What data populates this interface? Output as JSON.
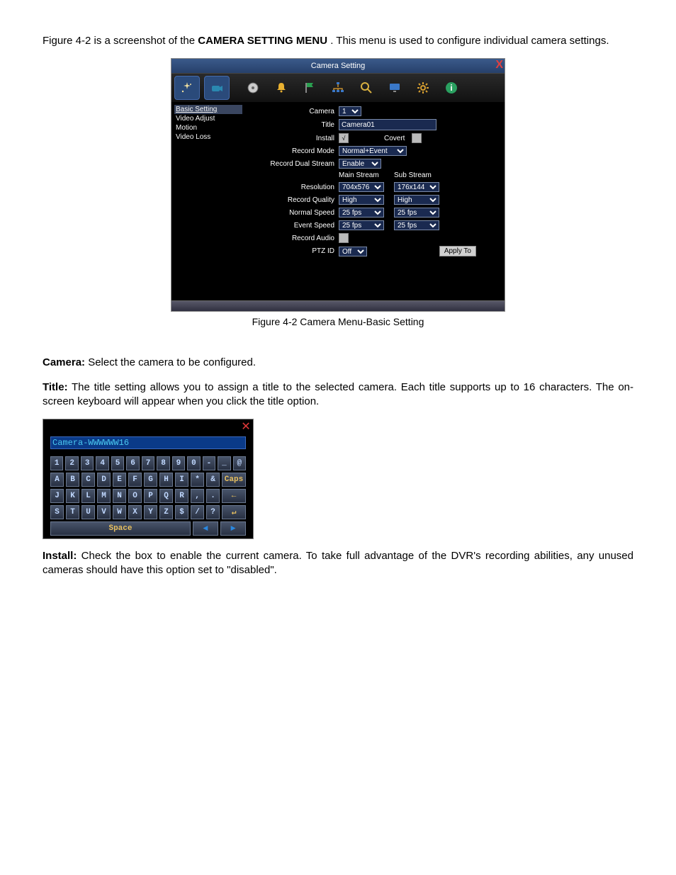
{
  "intro_prefix": "Figure 4-2 is a screenshot of the ",
  "intro_bold": "CAMERA SETTING MENU",
  "intro_suffix": ". This menu is used to configure individual camera settings.",
  "caption": "Figure 4-2 Camera Menu-Basic Setting",
  "dialog": {
    "title": "Camera Setting",
    "sidebar": [
      "Basic Setting",
      "Video Adjust",
      "Motion",
      "Video Loss"
    ],
    "labels": {
      "camera": "Camera",
      "title": "Title",
      "install": "Install",
      "covert": "Covert",
      "record_mode": "Record Mode",
      "record_dual_stream": "Record Dual Stream",
      "main_stream": "Main Stream",
      "sub_stream": "Sub Stream",
      "resolution": "Resolution",
      "record_quality": "Record Quality",
      "normal_speed": "Normal Speed",
      "event_speed": "Event Speed",
      "record_audio": "Record Audio",
      "ptz_id": "PTZ ID",
      "apply_to": "Apply To"
    },
    "values": {
      "camera": "1",
      "title": "Camera01",
      "install_checked": "√",
      "covert_checked": "",
      "record_mode": "Normal+Event",
      "record_dual_stream": "Enable",
      "main_resolution": "704x576",
      "sub_resolution": "176x144",
      "main_quality": "High",
      "sub_quality": "High",
      "main_normal_speed": "25 fps",
      "sub_normal_speed": "25 fps",
      "main_event_speed": "25 fps",
      "sub_event_speed": "25 fps",
      "record_audio_checked": "",
      "ptz_id": "Off"
    },
    "toolbar_icons": [
      "sparkle",
      "cam",
      "disc",
      "bell",
      "flag",
      "network",
      "search",
      "monitor",
      "gear",
      "info"
    ]
  },
  "desc": {
    "camera_label": "Camera:",
    "camera_text": " Select the camera to be configured.",
    "title_label": "Title:",
    "title_text": " The title setting allows you to assign a title to the selected camera. Each title supports up to 16 characters. The on-screen keyboard will appear when you click the title option.",
    "install_label": "Install:",
    "install_text": " Check the box to enable the current camera. To take full advantage of the DVR's recording abilities, any unused cameras should have this option set to \"disabled\"."
  },
  "osk": {
    "field_value": "Camera-WWWWWW16",
    "row1": [
      "1",
      "2",
      "3",
      "4",
      "5",
      "6",
      "7",
      "8",
      "9",
      "0",
      "-",
      "_",
      "@"
    ],
    "row2": [
      "A",
      "B",
      "C",
      "D",
      "E",
      "F",
      "G",
      "H",
      "I",
      "*",
      "&"
    ],
    "row2_wide": "Caps",
    "row3": [
      "J",
      "K",
      "L",
      "M",
      "N",
      "O",
      "P",
      "Q",
      "R",
      ",",
      "."
    ],
    "row3_wide": "←",
    "row4": [
      "S",
      "T",
      "U",
      "V",
      "W",
      "X",
      "Y",
      "Z",
      "$",
      "/",
      "?"
    ],
    "row4_wide": "↵",
    "space": "Space",
    "left": "◄",
    "right": "►"
  }
}
